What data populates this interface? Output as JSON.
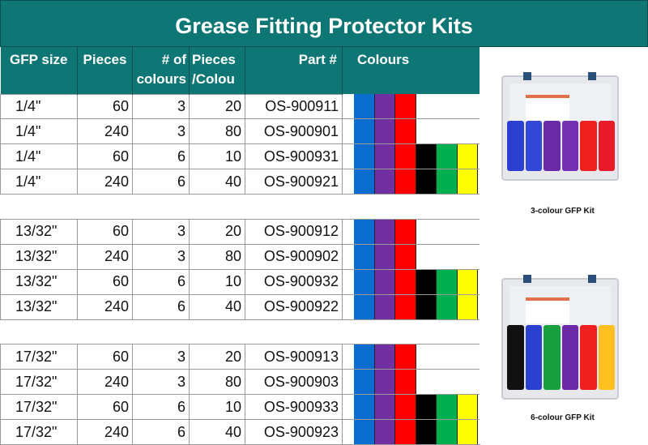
{
  "title": "Grease Fitting Protector Kits",
  "headers": {
    "size": "GFP size",
    "pieces": "Pieces",
    "num_colours": "# of colours",
    "per_colour": "Pieces /Colou",
    "part": "Part #",
    "colours": "Colours"
  },
  "colors": {
    "blue": "#0a6ed1",
    "purple": "#7030a0",
    "red": "#ff0000",
    "black": "#000000",
    "green": "#00b050",
    "yellow": "#ffff00",
    "teal": "#0f7676"
  },
  "rows": [
    {
      "size": "1/4\"",
      "pieces": "60",
      "num": "3",
      "per": "20",
      "part": "OS-900911",
      "colours": [
        "blue",
        "purple",
        "red"
      ]
    },
    {
      "size": "1/4\"",
      "pieces": "240",
      "num": "3",
      "per": "80",
      "part": "OS-900901",
      "colours": [
        "blue",
        "purple",
        "red"
      ]
    },
    {
      "size": "1/4\"",
      "pieces": "60",
      "num": "6",
      "per": "10",
      "part": "OS-900931",
      "colours": [
        "blue",
        "purple",
        "red",
        "black",
        "green",
        "yellow"
      ]
    },
    {
      "size": "1/4\"",
      "pieces": "240",
      "num": "6",
      "per": "40",
      "part": "OS-900921",
      "colours": [
        "blue",
        "purple",
        "red",
        "black",
        "green",
        "yellow"
      ]
    },
    null,
    {
      "size": "13/32\"",
      "pieces": "60",
      "num": "3",
      "per": "20",
      "part": "OS-900912",
      "colours": [
        "blue",
        "purple",
        "red"
      ]
    },
    {
      "size": "13/32\"",
      "pieces": "240",
      "num": "3",
      "per": "80",
      "part": "OS-900902",
      "colours": [
        "blue",
        "purple",
        "red"
      ]
    },
    {
      "size": "13/32\"",
      "pieces": "60",
      "num": "6",
      "per": "10",
      "part": "OS-900932",
      "colours": [
        "blue",
        "purple",
        "red",
        "black",
        "green",
        "yellow"
      ]
    },
    {
      "size": "13/32\"",
      "pieces": "240",
      "num": "6",
      "per": "40",
      "part": "OS-900922",
      "colours": [
        "blue",
        "purple",
        "red",
        "black",
        "green",
        "yellow"
      ]
    },
    null,
    {
      "size": "17/32\"",
      "pieces": "60",
      "num": "3",
      "per": "20",
      "part": "OS-900913",
      "colours": [
        "blue",
        "purple",
        "red"
      ]
    },
    {
      "size": "17/32\"",
      "pieces": "240",
      "num": "3",
      "per": "80",
      "part": "OS-900903",
      "colours": [
        "blue",
        "purple",
        "red"
      ]
    },
    {
      "size": "17/32\"",
      "pieces": "60",
      "num": "6",
      "per": "10",
      "part": "OS-900933",
      "colours": [
        "blue",
        "purple",
        "red",
        "black",
        "green",
        "yellow"
      ]
    },
    {
      "size": "17/32\"",
      "pieces": "240",
      "num": "6",
      "per": "40",
      "part": "OS-900923",
      "colours": [
        "blue",
        "purple",
        "red",
        "black",
        "green",
        "yellow"
      ]
    }
  ],
  "kits": [
    {
      "caption": "3-colour GFP Kit",
      "stripes": [
        "#2b3fd0",
        "#3448d8",
        "#6a2aa8",
        "#7430b0",
        "#ee2020",
        "#e81a2a"
      ]
    },
    {
      "caption": "6-colour GFP Kit",
      "stripes": [
        "#111111",
        "#2b3fd0",
        "#18a040",
        "#6a2aa8",
        "#ee2020",
        "#ffc020"
      ]
    }
  ]
}
